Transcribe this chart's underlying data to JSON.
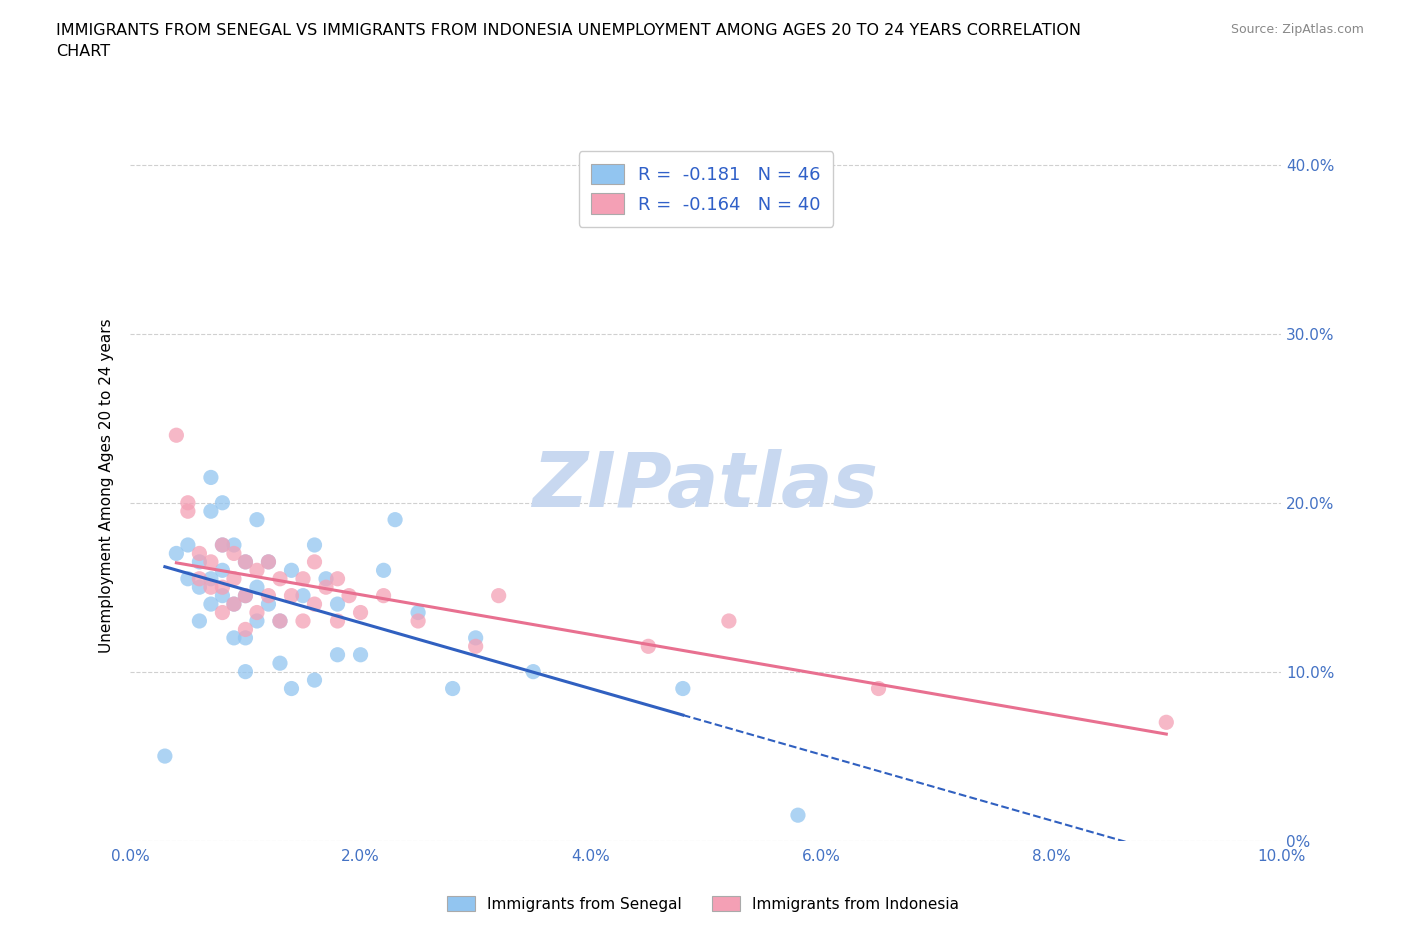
{
  "title": "IMMIGRANTS FROM SENEGAL VS IMMIGRANTS FROM INDONESIA UNEMPLOYMENT AMONG AGES 20 TO 24 YEARS CORRELATION\nCHART",
  "source_text": "Source: ZipAtlas.com",
  "ylabel": "Unemployment Among Ages 20 to 24 years",
  "xlim": [
    0.0,
    0.1
  ],
  "ylim": [
    0.0,
    0.42
  ],
  "xticks": [
    0.0,
    0.02,
    0.04,
    0.06,
    0.08,
    0.1
  ],
  "yticks": [
    0.0,
    0.1,
    0.2,
    0.3,
    0.4
  ],
  "right_ytick_labels": [
    "0%",
    "10.0%",
    "20.0%",
    "30.0%",
    "40.0%"
  ],
  "xtick_labels": [
    "0.0%",
    "2.0%",
    "4.0%",
    "6.0%",
    "8.0%",
    "10.0%"
  ],
  "senegal_R": -0.181,
  "senegal_N": 46,
  "indonesia_R": -0.164,
  "indonesia_N": 40,
  "senegal_color": "#92C5F0",
  "indonesia_color": "#F4A0B5",
  "senegal_line_color": "#3060C0",
  "indonesia_line_color": "#E87090",
  "watermark": "ZIPatlas",
  "watermark_color": "#C8D8F0",
  "legend_label_senegal": "Immigrants from Senegal",
  "legend_label_indonesia": "Immigrants from Indonesia",
  "senegal_x": [
    0.003,
    0.004,
    0.005,
    0.005,
    0.006,
    0.006,
    0.006,
    0.007,
    0.007,
    0.007,
    0.007,
    0.008,
    0.008,
    0.008,
    0.008,
    0.009,
    0.009,
    0.009,
    0.01,
    0.01,
    0.01,
    0.01,
    0.011,
    0.011,
    0.011,
    0.012,
    0.012,
    0.013,
    0.013,
    0.014,
    0.014,
    0.015,
    0.016,
    0.016,
    0.017,
    0.018,
    0.018,
    0.02,
    0.022,
    0.023,
    0.025,
    0.028,
    0.03,
    0.035,
    0.048,
    0.058
  ],
  "senegal_y": [
    0.05,
    0.17,
    0.155,
    0.175,
    0.13,
    0.15,
    0.165,
    0.14,
    0.155,
    0.195,
    0.215,
    0.145,
    0.16,
    0.175,
    0.2,
    0.12,
    0.14,
    0.175,
    0.1,
    0.12,
    0.145,
    0.165,
    0.13,
    0.15,
    0.19,
    0.14,
    0.165,
    0.105,
    0.13,
    0.09,
    0.16,
    0.145,
    0.095,
    0.175,
    0.155,
    0.11,
    0.14,
    0.11,
    0.16,
    0.19,
    0.135,
    0.09,
    0.12,
    0.1,
    0.09,
    0.015
  ],
  "indonesia_x": [
    0.004,
    0.005,
    0.005,
    0.006,
    0.006,
    0.007,
    0.007,
    0.008,
    0.008,
    0.008,
    0.009,
    0.009,
    0.009,
    0.01,
    0.01,
    0.01,
    0.011,
    0.011,
    0.012,
    0.012,
    0.013,
    0.013,
    0.014,
    0.015,
    0.015,
    0.016,
    0.016,
    0.017,
    0.018,
    0.018,
    0.019,
    0.02,
    0.022,
    0.025,
    0.03,
    0.032,
    0.045,
    0.052,
    0.065,
    0.09
  ],
  "indonesia_y": [
    0.24,
    0.195,
    0.2,
    0.155,
    0.17,
    0.15,
    0.165,
    0.135,
    0.15,
    0.175,
    0.14,
    0.155,
    0.17,
    0.125,
    0.145,
    0.165,
    0.135,
    0.16,
    0.145,
    0.165,
    0.13,
    0.155,
    0.145,
    0.13,
    0.155,
    0.14,
    0.165,
    0.15,
    0.13,
    0.155,
    0.145,
    0.135,
    0.145,
    0.13,
    0.115,
    0.145,
    0.115,
    0.13,
    0.09,
    0.07
  ]
}
